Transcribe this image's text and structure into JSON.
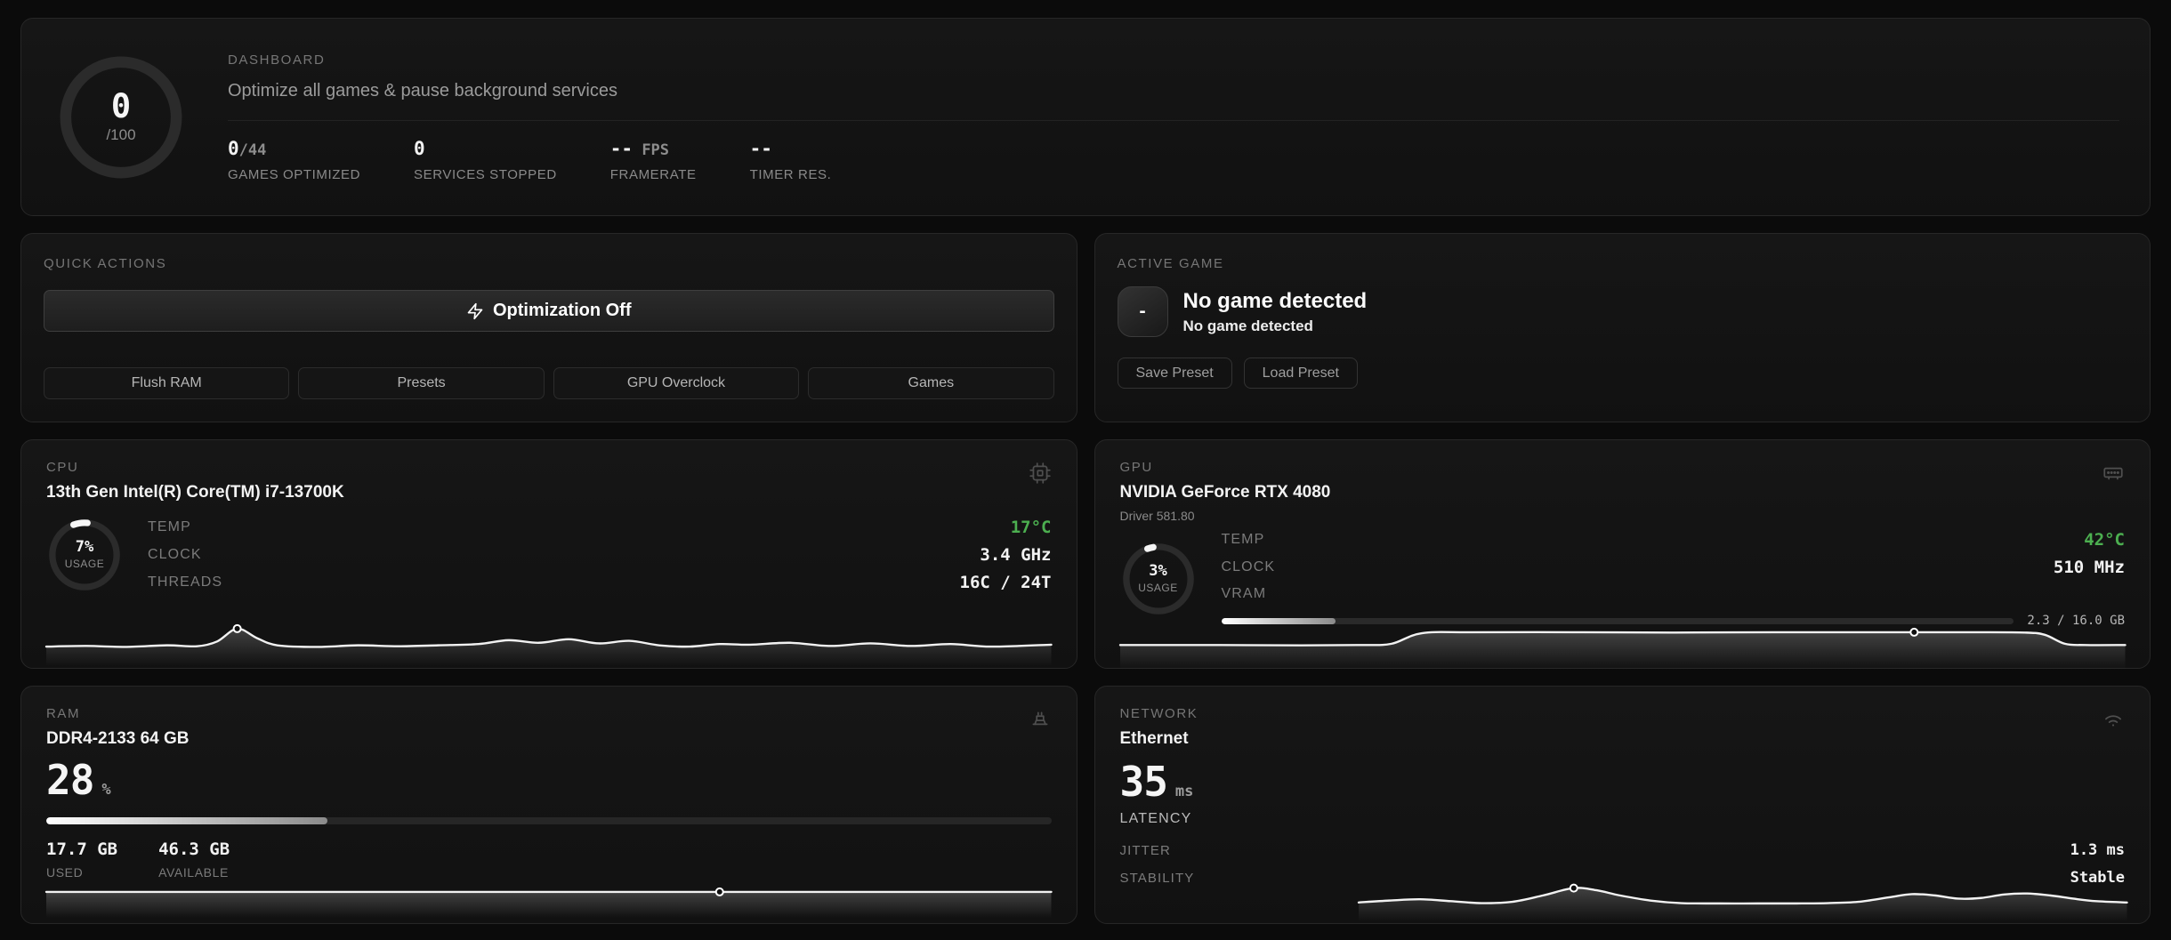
{
  "colors": {
    "accent_green": "#4caf50",
    "line": "#f2f2f2",
    "gauge_track": "#2b2b2b"
  },
  "dashboard": {
    "label": "DASHBOARD",
    "description": "Optimize all games & pause background services",
    "gauge": {
      "value": "0",
      "max": "/100",
      "percent": 0
    },
    "stats": [
      {
        "value": "0",
        "suffix": "/44",
        "label": "GAMES OPTIMIZED"
      },
      {
        "value": "0",
        "suffix": "",
        "label": "SERVICES STOPPED"
      },
      {
        "value": "--",
        "suffix": " FPS",
        "label": "FRAMERATE"
      },
      {
        "value": "--",
        "suffix": "",
        "label": "TIMER RES."
      }
    ]
  },
  "quick_actions": {
    "label": "QUICK ACTIONS",
    "optimize_button": {
      "label": "Optimization Off",
      "icon": "zap-icon"
    },
    "buttons": [
      {
        "label": "Flush RAM"
      },
      {
        "label": "Presets"
      },
      {
        "label": "GPU Overclock"
      },
      {
        "label": "Games"
      }
    ]
  },
  "active_game": {
    "label": "ACTIVE GAME",
    "tile_text": "-",
    "title": "No game detected",
    "subtitle": "No game detected",
    "buttons": [
      {
        "label": "Save Preset"
      },
      {
        "label": "Load Preset"
      }
    ]
  },
  "cpu": {
    "label": "CPU",
    "icon": "cpu-chip-icon",
    "title": "13th Gen Intel(R) Core(TM) i7-13700K",
    "usage": {
      "percent": 7,
      "display": "7%",
      "caption": "USAGE"
    },
    "rows": [
      {
        "label": "TEMP",
        "value": "17°C"
      },
      {
        "label": "CLOCK",
        "value": "3.4 GHz"
      },
      {
        "label": "THREADS",
        "value": "16C / 24T"
      }
    ],
    "spark": {
      "points": [
        [
          0,
          78
        ],
        [
          4,
          76
        ],
        [
          8,
          79
        ],
        [
          12,
          74
        ],
        [
          15,
          77
        ],
        [
          17,
          62
        ],
        [
          19,
          22
        ],
        [
          21,
          52
        ],
        [
          23,
          74
        ],
        [
          27,
          79
        ],
        [
          31,
          74
        ],
        [
          35,
          77
        ],
        [
          39,
          74
        ],
        [
          43,
          70
        ],
        [
          46,
          58
        ],
        [
          49,
          66
        ],
        [
          52,
          55
        ],
        [
          55,
          68
        ],
        [
          58,
          60
        ],
        [
          61,
          74
        ],
        [
          64,
          78
        ],
        [
          67,
          70
        ],
        [
          70,
          72
        ],
        [
          74,
          66
        ],
        [
          78,
          76
        ],
        [
          82,
          68
        ],
        [
          86,
          76
        ],
        [
          90,
          70
        ],
        [
          94,
          78
        ],
        [
          100,
          72
        ]
      ],
      "marker": 6
    }
  },
  "gpu": {
    "label": "GPU",
    "icon": "gpu-card-icon",
    "title": "NVIDIA GeForce RTX 4080",
    "driver": "Driver 581.80",
    "usage": {
      "percent": 3,
      "display": "3%",
      "caption": "USAGE"
    },
    "rows": [
      {
        "label": "TEMP",
        "value": "42°C"
      },
      {
        "label": "CLOCK",
        "value": "510 MHz"
      }
    ],
    "vram": {
      "label": "VRAM",
      "percent": 14.4,
      "text": "2.3 / 16.0 GB"
    },
    "spark": {
      "points": [
        [
          0,
          62
        ],
        [
          10,
          62
        ],
        [
          18,
          63
        ],
        [
          24,
          62
        ],
        [
          27,
          58
        ],
        [
          30,
          25
        ],
        [
          35,
          22
        ],
        [
          45,
          22
        ],
        [
          55,
          23
        ],
        [
          65,
          22
        ],
        [
          75,
          22
        ],
        [
          79,
          22
        ],
        [
          85,
          22
        ],
        [
          90,
          23
        ],
        [
          92,
          30
        ],
        [
          94,
          58
        ],
        [
          96,
          62
        ],
        [
          100,
          62
        ]
      ],
      "marker": 11
    }
  },
  "ram": {
    "label": "RAM",
    "icon": "memory-stick-icon",
    "title": "DDR4-2133 64 GB",
    "percent": {
      "value": "28",
      "unit": "%",
      "bar": 28
    },
    "used": {
      "value": "17.7 GB",
      "label": "USED"
    },
    "available": {
      "value": "46.3 GB",
      "label": "AVAILABLE"
    },
    "spark": {
      "points": [
        [
          0,
          42
        ],
        [
          30,
          42
        ],
        [
          67,
          42
        ],
        [
          100,
          42
        ]
      ],
      "marker": 2
    }
  },
  "network": {
    "label": "NETWORK",
    "icon": "wifi-icon",
    "title": "Ethernet",
    "latency": {
      "value": "35",
      "unit": "ms",
      "label": "LATENCY"
    },
    "rows": [
      {
        "label": "JITTER",
        "value": "1.3 ms"
      },
      {
        "label": "STABILITY",
        "value": "Stable"
      }
    ],
    "spark": {
      "points": [
        [
          0,
          80
        ],
        [
          4,
          74
        ],
        [
          8,
          70
        ],
        [
          12,
          76
        ],
        [
          16,
          82
        ],
        [
          20,
          78
        ],
        [
          24,
          58
        ],
        [
          28,
          35
        ],
        [
          31,
          42
        ],
        [
          34,
          58
        ],
        [
          38,
          74
        ],
        [
          42,
          82
        ],
        [
          47,
          83
        ],
        [
          52,
          83
        ],
        [
          57,
          83
        ],
        [
          61,
          82
        ],
        [
          65,
          78
        ],
        [
          69,
          64
        ],
        [
          72,
          54
        ],
        [
          75,
          58
        ],
        [
          78,
          68
        ],
        [
          81,
          66
        ],
        [
          84,
          55
        ],
        [
          87,
          52
        ],
        [
          90,
          58
        ],
        [
          93,
          68
        ],
        [
          96,
          76
        ],
        [
          100,
          80
        ]
      ],
      "marker": 7
    }
  }
}
